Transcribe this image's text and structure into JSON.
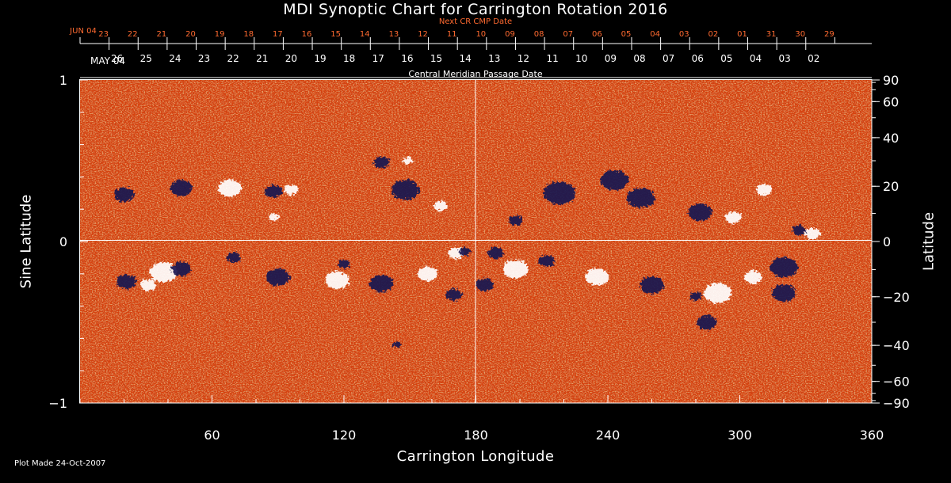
{
  "title": "MDI Synoptic Chart for Carrington Rotation 2016",
  "next_cr_label": "Next CR CMP Date",
  "cmp_label": "Central Meridian Passage Date",
  "x_axis_title": "Carrington Longitude",
  "y_left_title": "Sine Latitude",
  "y_right_title": "Latitude",
  "plot_made": "Plot Made 24-Oct-2007",
  "colors": {
    "background": "#000000",
    "next_cr_labels": "#ff6a30",
    "map_base": "#d8420e",
    "positive_polarity": "#ffffff",
    "negative_polarity": "#1a1550",
    "grid_lines": "#ffffff"
  },
  "chart_data": {
    "type": "heatmap",
    "x_range": [
      0,
      360
    ],
    "y_left_range": [
      -1,
      1
    ],
    "x_ticks": [
      {
        "value": 60,
        "label": "60"
      },
      {
        "value": 120,
        "label": "120"
      },
      {
        "value": 180,
        "label": "180"
      },
      {
        "value": 240,
        "label": "240"
      },
      {
        "value": 300,
        "label": "300"
      },
      {
        "value": 360,
        "label": "360"
      }
    ],
    "y_left_ticks": [
      {
        "value": 1,
        "label": "1"
      },
      {
        "value": 0,
        "label": "0"
      },
      {
        "value": -1,
        "label": "−1"
      }
    ],
    "y_right_ticks": [
      {
        "value": 90,
        "label": "90"
      },
      {
        "value": 60,
        "label": "60"
      },
      {
        "value": 40,
        "label": "40"
      },
      {
        "value": 20,
        "label": "20"
      },
      {
        "value": 0,
        "label": "0"
      },
      {
        "value": -20,
        "label": "−20"
      },
      {
        "value": -40,
        "label": "−40"
      },
      {
        "value": -60,
        "label": "−60"
      },
      {
        "value": -90,
        "label": "−90"
      }
    ],
    "next_cr_dates": {
      "first_label": "JUN 04",
      "labels": [
        "23",
        "22",
        "21",
        "20",
        "19",
        "18",
        "17",
        "16",
        "15",
        "14",
        "13",
        "12",
        "11",
        "10",
        "09",
        "08",
        "07",
        "06",
        "05",
        "04",
        "03",
        "02",
        "01",
        "31",
        "30",
        "29"
      ],
      "first_longitude": 0,
      "step_longitude": 13.2
    },
    "cmp_dates": {
      "first_label": "MAY 04",
      "labels": [
        "26",
        "25",
        "24",
        "23",
        "22",
        "21",
        "20",
        "19",
        "18",
        "17",
        "16",
        "15",
        "14",
        "13",
        "12",
        "11",
        "10",
        "09",
        "08",
        "07",
        "06",
        "05",
        "04",
        "03",
        "02"
      ],
      "first_longitude": 0,
      "step_longitude": 13.2
    },
    "regions": [
      {
        "lon": 20,
        "lat": 0.29,
        "r": 10,
        "polarity": "negative"
      },
      {
        "lon": 46,
        "lat": 0.33,
        "r": 11,
        "polarity": "negative"
      },
      {
        "lon": 68,
        "lat": 0.33,
        "r": 12,
        "polarity": "positive"
      },
      {
        "lon": 88,
        "lat": 0.31,
        "r": 9,
        "polarity": "negative"
      },
      {
        "lon": 96,
        "lat": 0.32,
        "r": 7,
        "polarity": "positive"
      },
      {
        "lon": 88,
        "lat": 0.15,
        "r": 5,
        "polarity": "positive"
      },
      {
        "lon": 137,
        "lat": 0.49,
        "r": 8,
        "polarity": "negative"
      },
      {
        "lon": 148,
        "lat": 0.32,
        "r": 14,
        "polarity": "negative"
      },
      {
        "lon": 149,
        "lat": 0.5,
        "r": 5,
        "polarity": "positive"
      },
      {
        "lon": 164,
        "lat": 0.22,
        "r": 7,
        "polarity": "positive"
      },
      {
        "lon": 198,
        "lat": 0.13,
        "r": 7,
        "polarity": "negative"
      },
      {
        "lon": 218,
        "lat": 0.3,
        "r": 16,
        "polarity": "negative"
      },
      {
        "lon": 243,
        "lat": 0.38,
        "r": 14,
        "polarity": "negative"
      },
      {
        "lon": 255,
        "lat": 0.27,
        "r": 14,
        "polarity": "negative"
      },
      {
        "lon": 282,
        "lat": 0.18,
        "r": 12,
        "polarity": "negative"
      },
      {
        "lon": 297,
        "lat": 0.15,
        "r": 8,
        "polarity": "positive"
      },
      {
        "lon": 311,
        "lat": 0.32,
        "r": 8,
        "polarity": "positive"
      },
      {
        "lon": 333,
        "lat": 0.05,
        "r": 8,
        "polarity": "positive"
      },
      {
        "lon": 327,
        "lat": 0.07,
        "r": 7,
        "polarity": "negative"
      },
      {
        "lon": 320,
        "lat": -0.16,
        "r": 14,
        "polarity": "negative"
      },
      {
        "lon": 21,
        "lat": -0.25,
        "r": 10,
        "polarity": "negative"
      },
      {
        "lon": 38,
        "lat": -0.19,
        "r": 14,
        "polarity": "positive"
      },
      {
        "lon": 31,
        "lat": -0.27,
        "r": 8,
        "polarity": "positive"
      },
      {
        "lon": 46,
        "lat": -0.17,
        "r": 10,
        "polarity": "negative"
      },
      {
        "lon": 70,
        "lat": -0.1,
        "r": 7,
        "polarity": "negative"
      },
      {
        "lon": 90,
        "lat": -0.22,
        "r": 12,
        "polarity": "negative"
      },
      {
        "lon": 117,
        "lat": -0.24,
        "r": 12,
        "polarity": "positive"
      },
      {
        "lon": 120,
        "lat": -0.14,
        "r": 6,
        "polarity": "negative"
      },
      {
        "lon": 137,
        "lat": -0.26,
        "r": 12,
        "polarity": "negative"
      },
      {
        "lon": 158,
        "lat": -0.2,
        "r": 10,
        "polarity": "positive"
      },
      {
        "lon": 170,
        "lat": -0.33,
        "r": 8,
        "polarity": "negative"
      },
      {
        "lon": 171,
        "lat": -0.07,
        "r": 8,
        "polarity": "positive"
      },
      {
        "lon": 175,
        "lat": -0.06,
        "r": 6,
        "polarity": "negative"
      },
      {
        "lon": 184,
        "lat": -0.27,
        "r": 9,
        "polarity": "negative"
      },
      {
        "lon": 189,
        "lat": -0.07,
        "r": 8,
        "polarity": "negative"
      },
      {
        "lon": 198,
        "lat": -0.17,
        "r": 13,
        "polarity": "positive"
      },
      {
        "lon": 212,
        "lat": -0.12,
        "r": 8,
        "polarity": "negative"
      },
      {
        "lon": 235,
        "lat": -0.22,
        "r": 12,
        "polarity": "positive"
      },
      {
        "lon": 260,
        "lat": -0.27,
        "r": 12,
        "polarity": "negative"
      },
      {
        "lon": 280,
        "lat": -0.34,
        "r": 6,
        "polarity": "negative"
      },
      {
        "lon": 290,
        "lat": -0.32,
        "r": 14,
        "polarity": "positive"
      },
      {
        "lon": 306,
        "lat": -0.22,
        "r": 9,
        "polarity": "positive"
      },
      {
        "lon": 320,
        "lat": -0.32,
        "r": 12,
        "polarity": "negative"
      },
      {
        "lon": 285,
        "lat": -0.5,
        "r": 10,
        "polarity": "negative"
      },
      {
        "lon": 144,
        "lat": -0.64,
        "r": 4,
        "polarity": "negative"
      }
    ]
  }
}
